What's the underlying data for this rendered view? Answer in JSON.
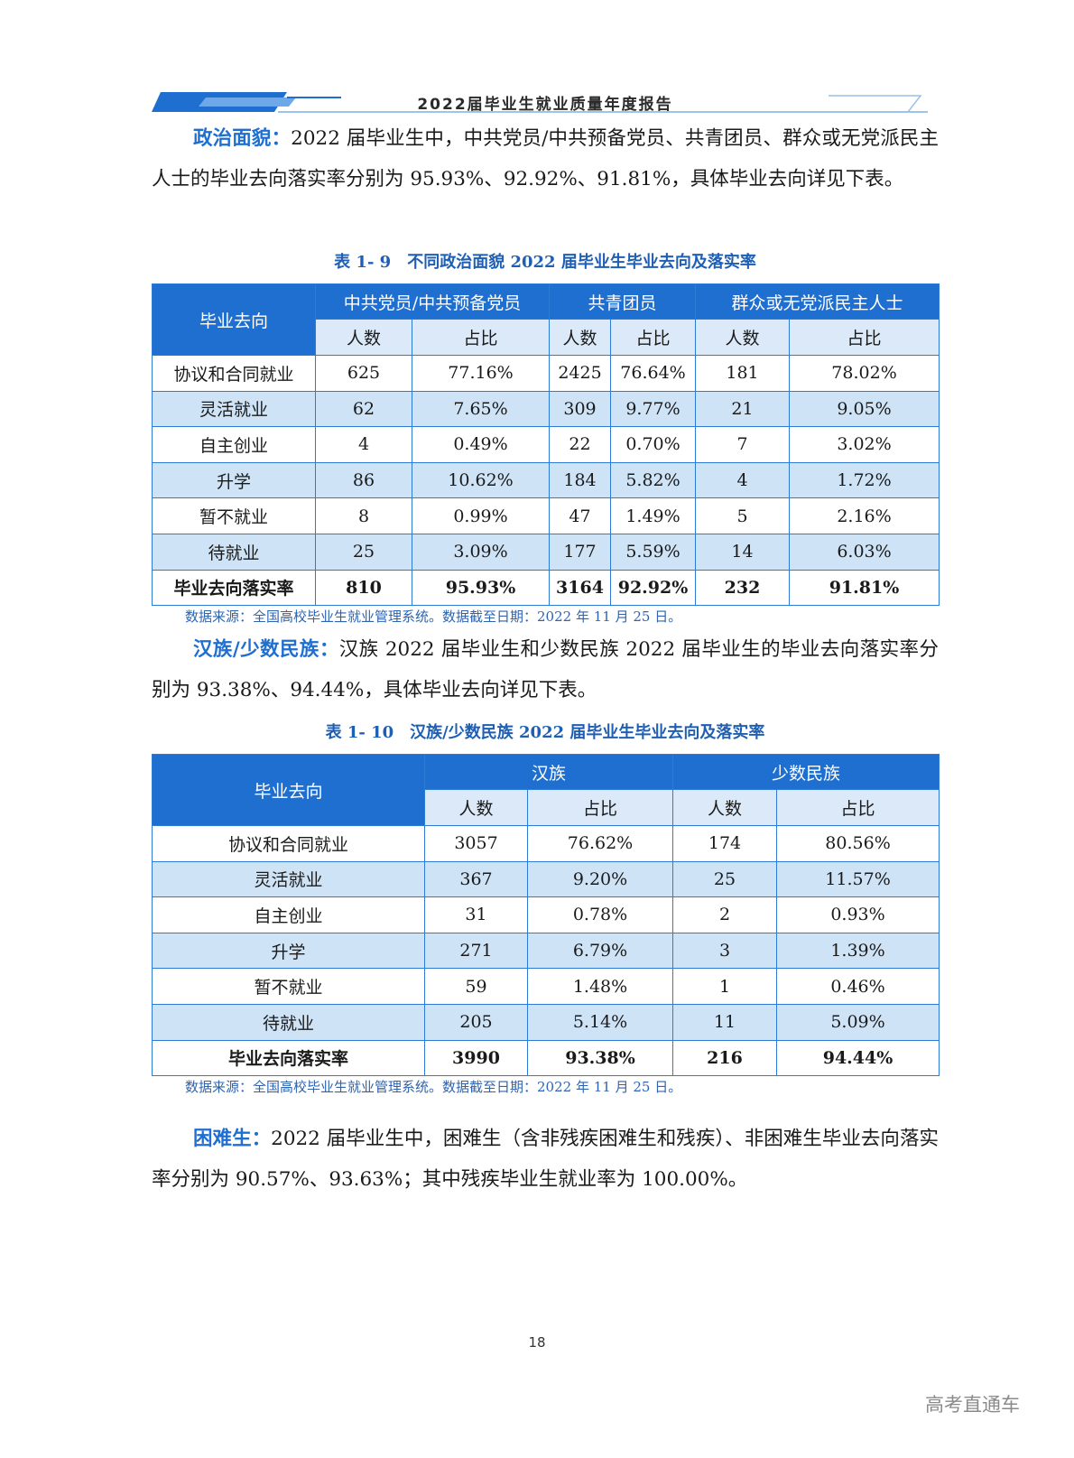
{
  "header": {
    "title": "2022届毕业生就业质量年度报告"
  },
  "section1": {
    "keyword": "政治面貌：",
    "text": "2022 届毕业生中，中共党员/中共预备党员、共青团员、群众或无党派民主人士的毕业去向落实率分别为 95.93%、92.92%、91.81%，具体毕业去向详见下表。"
  },
  "table1": {
    "caption": "表 1- 9　不同政治面貌 2022 届毕业生毕业去向及落实率",
    "corner": "毕业去向",
    "groups": [
      "中共党员/中共预备党员",
      "共青团员",
      "群众或无党派民主人士"
    ],
    "subheaders": [
      "人数",
      "占比",
      "人数",
      "占比",
      "人数",
      "占比"
    ],
    "rows": [
      {
        "label": "协议和合同就业",
        "values": [
          "625",
          "77.16%",
          "2425",
          "76.64%",
          "181",
          "78.02%"
        ]
      },
      {
        "label": "灵活就业",
        "values": [
          "62",
          "7.65%",
          "309",
          "9.77%",
          "21",
          "9.05%"
        ]
      },
      {
        "label": "自主创业",
        "values": [
          "4",
          "0.49%",
          "22",
          "0.70%",
          "7",
          "3.02%"
        ]
      },
      {
        "label": "升学",
        "values": [
          "86",
          "10.62%",
          "184",
          "5.82%",
          "4",
          "1.72%"
        ]
      },
      {
        "label": "暂不就业",
        "values": [
          "8",
          "0.99%",
          "47",
          "1.49%",
          "5",
          "2.16%"
        ]
      },
      {
        "label": "待就业",
        "values": [
          "25",
          "3.09%",
          "177",
          "5.59%",
          "14",
          "6.03%"
        ]
      },
      {
        "label": "毕业去向落实率",
        "values": [
          "810",
          "95.93%",
          "3164",
          "92.92%",
          "232",
          "91.81%"
        ]
      }
    ],
    "source": "数据来源：全国高校毕业生就业管理系统。数据截至日期：2022 年 11 月 25 日。"
  },
  "section2": {
    "keyword": "汉族/少数民族：",
    "text": "汉族 2022 届毕业生和少数民族 2022 届毕业生的毕业去向落实率分别为 93.38%、94.44%，具体毕业去向详见下表。"
  },
  "table2": {
    "caption": "表 1- 10　汉族/少数民族 2022 届毕业生毕业去向及落实率",
    "corner": "毕业去向",
    "groups": [
      "汉族",
      "少数民族"
    ],
    "subheaders": [
      "人数",
      "占比",
      "人数",
      "占比"
    ],
    "rows": [
      {
        "label": "协议和合同就业",
        "values": [
          "3057",
          "76.62%",
          "174",
          "80.56%"
        ]
      },
      {
        "label": "灵活就业",
        "values": [
          "367",
          "9.20%",
          "25",
          "11.57%"
        ]
      },
      {
        "label": "自主创业",
        "values": [
          "31",
          "0.78%",
          "2",
          "0.93%"
        ]
      },
      {
        "label": "升学",
        "values": [
          "271",
          "6.79%",
          "3",
          "1.39%"
        ]
      },
      {
        "label": "暂不就业",
        "values": [
          "59",
          "1.48%",
          "1",
          "0.46%"
        ]
      },
      {
        "label": "待就业",
        "values": [
          "205",
          "5.14%",
          "11",
          "5.09%"
        ]
      },
      {
        "label": "毕业去向落实率",
        "values": [
          "3990",
          "93.38%",
          "216",
          "94.44%"
        ]
      }
    ],
    "source": "数据来源：全国高校毕业生就业管理系统。数据截至日期：2022 年 11 月 25 日。"
  },
  "section3": {
    "keyword": "困难生：",
    "text": "2022 届毕业生中，困难生（含非残疾困难生和残疾）、非困难生毕业去向落实率分别为 90.57%、93.63%；其中残疾毕业生就业率为 100.00%。"
  },
  "page_number": "18",
  "watermark": "高考直通车"
}
